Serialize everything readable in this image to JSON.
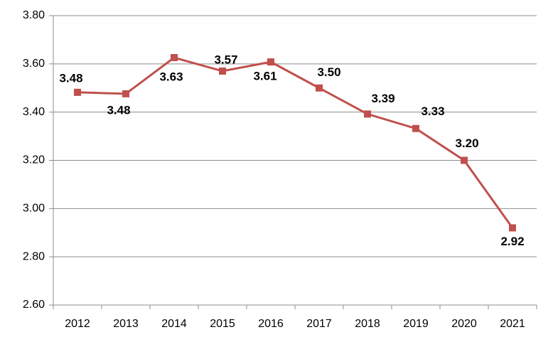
{
  "chart_data": {
    "type": "line",
    "categories": [
      "2012",
      "2013",
      "2014",
      "2015",
      "2016",
      "2017",
      "2018",
      "2019",
      "2020",
      "2021"
    ],
    "series": [
      {
        "color": "#c0504d",
        "values": [
          3.482,
          3.476,
          3.626,
          3.57,
          3.608,
          3.5,
          3.392,
          3.332,
          3.2,
          2.92
        ],
        "value_labels": [
          "3.48",
          "3.48",
          "3.63",
          "3.57",
          "3.61",
          "3.50",
          "3.39",
          "3.33",
          "3.20",
          "2.92"
        ]
      }
    ],
    "ylim": [
      2.6,
      3.8
    ],
    "yticks": [
      {
        "value": 2.6,
        "label": "2.60"
      },
      {
        "value": 2.8,
        "label": "2.80"
      },
      {
        "value": 3.0,
        "label": "3.00"
      },
      {
        "value": 3.2,
        "label": "3.20"
      },
      {
        "value": 3.4,
        "label": "3.40"
      },
      {
        "value": 3.6,
        "label": "3.60"
      },
      {
        "value": 3.8,
        "label": "3.80"
      }
    ],
    "grid": true
  }
}
